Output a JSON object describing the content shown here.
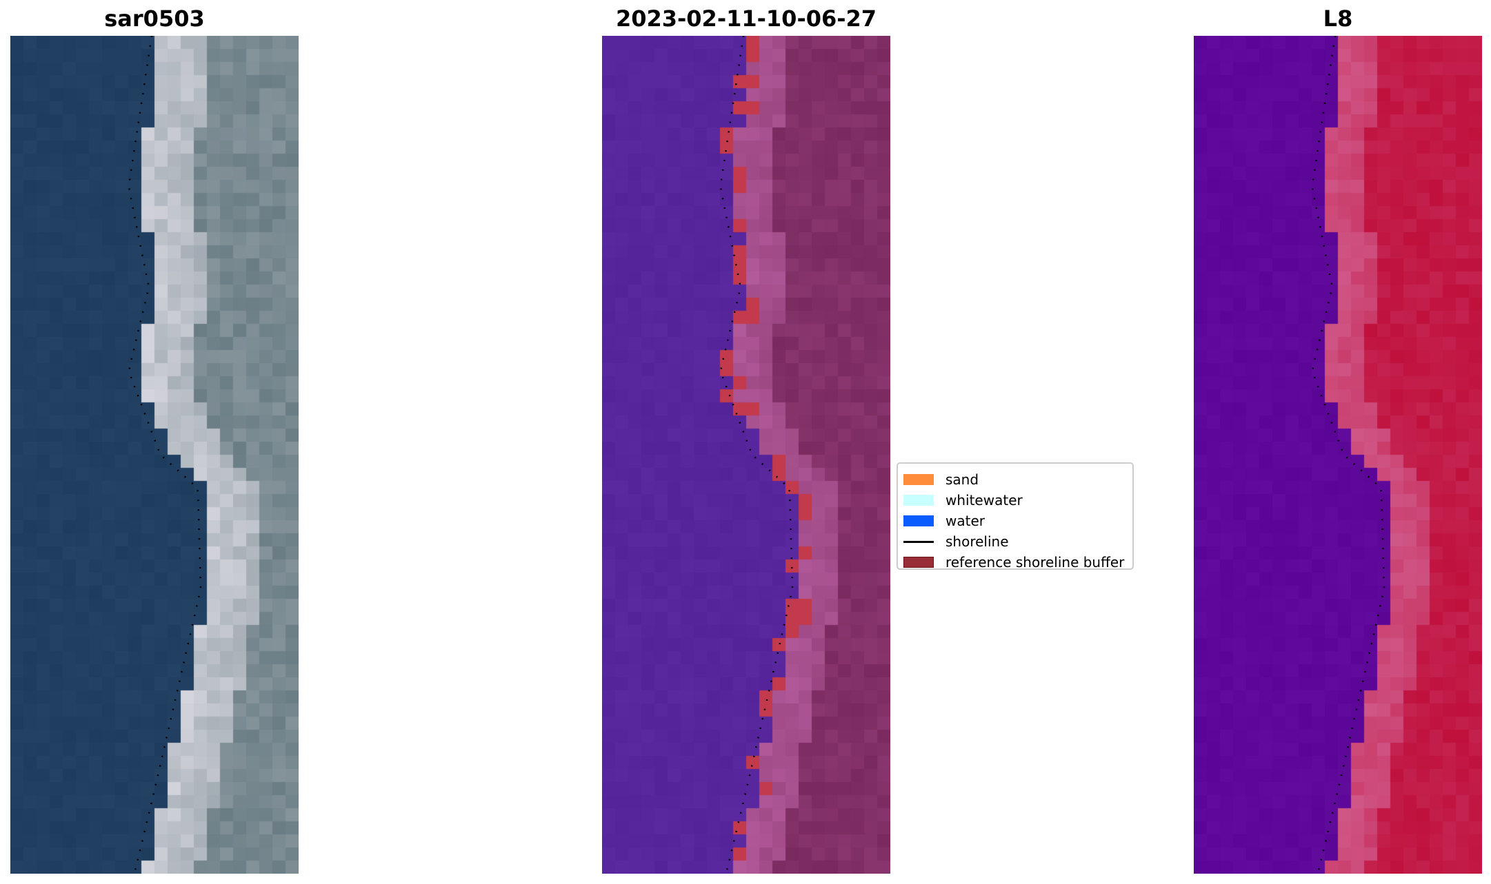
{
  "panels": [
    {
      "title": "sar0503",
      "image": "rgb-satellite-image",
      "colors": {
        "water": "#1e3d5e",
        "beach": "#d6d6de",
        "land": "#6a7d84"
      }
    },
    {
      "title": "2023-02-11-10-06-27",
      "image": "classified-image",
      "colors": {
        "water": "#54239a",
        "beach": "#b45b9c",
        "land": "#7a2a5e",
        "buffer": "#c23a4c"
      }
    },
    {
      "title": "L8",
      "image": "mndwi-image",
      "colors": {
        "water": "#5a0596",
        "beach": "#d05a8a",
        "land": "#c0103c"
      }
    }
  ],
  "legend": {
    "items": [
      {
        "label": "sand",
        "type": "patch",
        "color": "#ff8c3a"
      },
      {
        "label": "whitewater",
        "type": "patch",
        "color": "#c8ffff"
      },
      {
        "label": "water",
        "type": "patch",
        "color": "#0a5cff"
      },
      {
        "label": "shoreline",
        "type": "line",
        "color": "#000000"
      },
      {
        "label": "reference shoreline buffer",
        "type": "patch",
        "color": "#9a2e36"
      }
    ]
  }
}
